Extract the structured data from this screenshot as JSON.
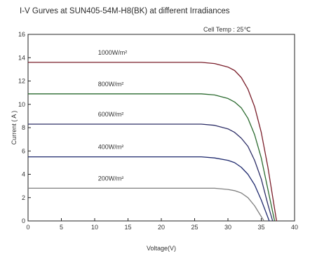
{
  "chart_data": {
    "type": "line",
    "title": "I-V Gurves at SUN405-54M-H8(BK) at different Irradiances",
    "annotation": "Cell Temp : 25℃",
    "xlabel": "Voltage(V)",
    "ylabel": "Current ( A )",
    "xlim": [
      0,
      40
    ],
    "ylim": [
      0,
      16
    ],
    "xticks": [
      0,
      5,
      10,
      15,
      20,
      25,
      30,
      35,
      40
    ],
    "yticks": [
      0,
      2,
      4,
      6,
      8,
      10,
      12,
      14,
      16
    ],
    "grid": false,
    "series": [
      {
        "name": "1000W/m²",
        "color": "#7a1e2a",
        "x": [
          0,
          26,
          28,
          30,
          31,
          32,
          33,
          34,
          35,
          36,
          36.5,
          37.3
        ],
        "y": [
          13.6,
          13.6,
          13.5,
          13.2,
          12.9,
          12.3,
          11.3,
          9.8,
          7.6,
          4.6,
          2.8,
          0
        ]
      },
      {
        "name": "800W/m²",
        "color": "#2a6a2e",
        "x": [
          0,
          26,
          28,
          30,
          31,
          32,
          33,
          34,
          35,
          36,
          37.0
        ],
        "y": [
          10.9,
          10.9,
          10.8,
          10.5,
          10.2,
          9.7,
          8.8,
          7.4,
          5.4,
          2.7,
          0
        ]
      },
      {
        "name": "600W/m²",
        "color": "#2c2d66",
        "x": [
          0,
          26,
          28,
          30,
          31,
          32,
          33,
          34,
          35,
          36,
          36.7
        ],
        "y": [
          8.3,
          8.3,
          8.2,
          7.9,
          7.6,
          7.1,
          6.4,
          5.2,
          3.6,
          1.4,
          0
        ]
      },
      {
        "name": "400W/m²",
        "color": "#1f2a6e",
        "x": [
          0,
          26,
          28,
          30,
          31,
          32,
          33,
          34,
          35,
          36.2
        ],
        "y": [
          5.5,
          5.5,
          5.4,
          5.2,
          5.0,
          4.6,
          4.0,
          3.1,
          1.8,
          0
        ]
      },
      {
        "name": "200W/m²",
        "color": "#7f7f7f",
        "x": [
          0,
          28,
          30,
          31,
          32,
          33,
          34,
          35.4
        ],
        "y": [
          2.8,
          2.8,
          2.7,
          2.6,
          2.4,
          2.0,
          1.3,
          0
        ]
      }
    ]
  }
}
